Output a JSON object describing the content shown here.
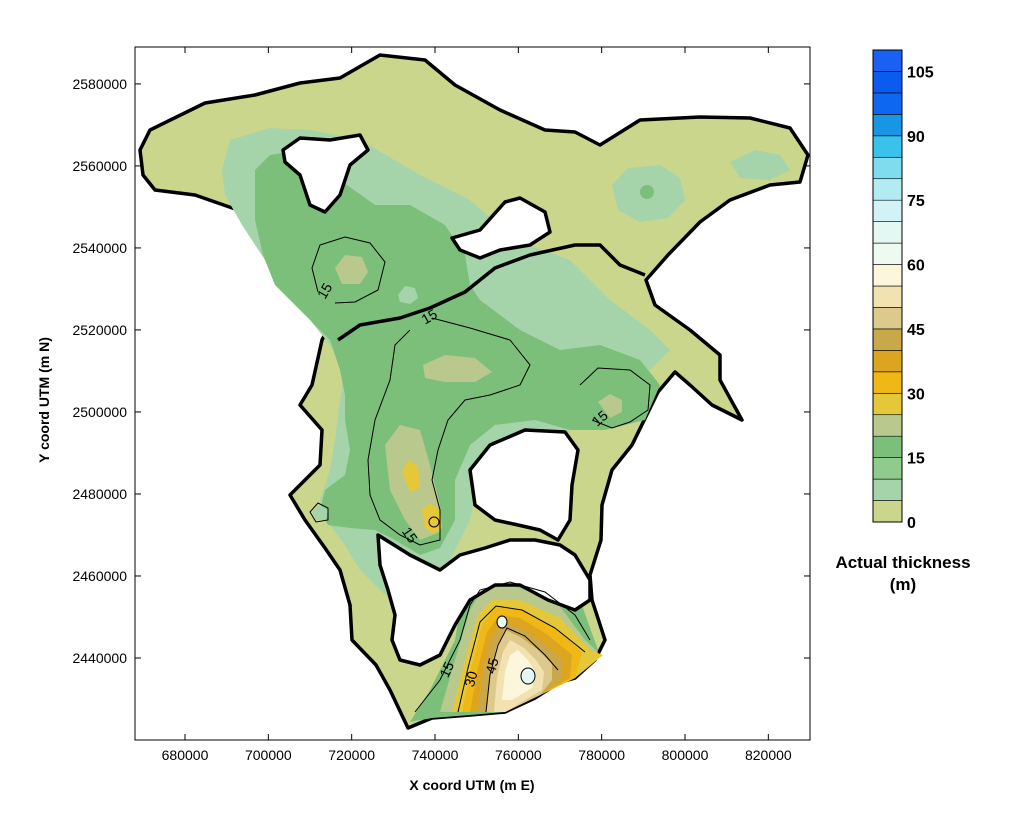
{
  "map": {
    "x_axis": {
      "label": "X coord UTM (m E)",
      "ticks": [
        "680000",
        "700000",
        "720000",
        "740000",
        "760000",
        "780000",
        "800000",
        "820000"
      ],
      "range": [
        668000,
        830000
      ]
    },
    "y_axis": {
      "label": "Y coord UTM (m N)",
      "ticks": [
        "2440000",
        "2460000",
        "2480000",
        "2500000",
        "2520000",
        "2540000",
        "2560000",
        "2580000"
      ],
      "range": [
        2420000,
        2589000
      ]
    },
    "contour_labels": [
      "15",
      "15",
      "15",
      "15",
      "15",
      "15",
      "30",
      "45"
    ],
    "colors": {
      "outside": "#ffffff",
      "level_0": "#c9d68c",
      "level_1": "#a5d4ab",
      "level_2": "#7cbf7a",
      "level_3": "#b9c98e",
      "level_4": "#e5c73a",
      "level_5": "#f0b814",
      "level_6": "#dda420",
      "level_7": "#c8a84a",
      "level_8": "#dec98c",
      "level_9": "#f3e2b1",
      "level_10": "#fbf6dc"
    }
  },
  "legend": {
    "title_line1": "Actual thickness",
    "title_line2": "(m)",
    "labels": [
      "0",
      "15",
      "30",
      "45",
      "60",
      "75",
      "90",
      "105"
    ],
    "bands": [
      {
        "from": 0,
        "to": 5,
        "color": "#c9d68c"
      },
      {
        "from": 5,
        "to": 10,
        "color": "#a5d4ab"
      },
      {
        "from": 10,
        "to": 15,
        "color": "#8fcb8c"
      },
      {
        "from": 15,
        "to": 20,
        "color": "#7cbf7a"
      },
      {
        "from": 20,
        "to": 25,
        "color": "#b9c98e"
      },
      {
        "from": 25,
        "to": 30,
        "color": "#e5c73a"
      },
      {
        "from": 30,
        "to": 35,
        "color": "#f0b814"
      },
      {
        "from": 35,
        "to": 40,
        "color": "#dda420"
      },
      {
        "from": 40,
        "to": 45,
        "color": "#c8a84a"
      },
      {
        "from": 45,
        "to": 50,
        "color": "#dec98c"
      },
      {
        "from": 50,
        "to": 55,
        "color": "#f3e2b1"
      },
      {
        "from": 55,
        "to": 60,
        "color": "#fbf6dc"
      },
      {
        "from": 60,
        "to": 65,
        "color": "#eefaef"
      },
      {
        "from": 65,
        "to": 70,
        "color": "#e3f8f3"
      },
      {
        "from": 70,
        "to": 75,
        "color": "#d2f3f5"
      },
      {
        "from": 75,
        "to": 80,
        "color": "#b3ebf2"
      },
      {
        "from": 80,
        "to": 85,
        "color": "#7fdcef"
      },
      {
        "from": 85,
        "to": 90,
        "color": "#39c3ec"
      },
      {
        "from": 90,
        "to": 95,
        "color": "#1995e6"
      },
      {
        "from": 95,
        "to": 100,
        "color": "#0d67f0"
      },
      {
        "from": 100,
        "to": 105,
        "color": "#0a5cf0"
      },
      {
        "from": 105,
        "to": 110,
        "color": "#1a60f5"
      }
    ]
  }
}
